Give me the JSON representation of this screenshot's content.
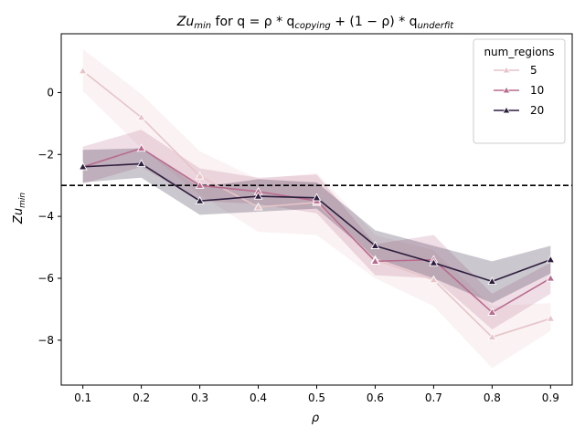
{
  "chart_data": {
    "type": "line",
    "title_prefix": "Zu",
    "title_prefix_sub": "min",
    "title_middle": " for q = ρ * q",
    "title_sub1": "copying",
    "title_middle2": " + (1 − ρ) * q",
    "title_sub2": "underfit",
    "xlabel": "ρ",
    "ylabel_main": "Zu",
    "ylabel_sub": "min",
    "x": [
      0.1,
      0.2,
      0.3,
      0.4,
      0.5,
      0.6,
      0.7,
      0.8,
      0.9
    ],
    "x_tick_labels": [
      "0.1",
      "0.2",
      "0.3",
      "0.4",
      "0.5",
      "0.6",
      "0.7",
      "0.8",
      "0.9"
    ],
    "y_ticks": [
      0,
      -2,
      -4,
      -6,
      -8
    ],
    "y_tick_labels": [
      "0",
      "−2",
      "−4",
      "−6",
      "−8"
    ],
    "xlim": [
      0.063,
      0.937
    ],
    "ylim": [
      -9.45,
      1.9
    ],
    "reference_line_y": -3,
    "legend_title": "num_regions",
    "legend_position": "upper right",
    "series": [
      {
        "name": "5",
        "color": "#e6c4c8",
        "values": [
          0.7,
          -0.8,
          -2.7,
          -3.7,
          -3.55,
          -5.4,
          -6.05,
          -7.9,
          -7.3
        ],
        "lower": [
          0.05,
          -1.8,
          -3.3,
          -4.5,
          -4.6,
          -6.0,
          -6.9,
          -8.9,
          -7.7
        ],
        "upper": [
          1.4,
          -0.05,
          -1.9,
          -2.8,
          -2.6,
          -4.6,
          -5.1,
          -6.9,
          -6.8
        ]
      },
      {
        "name": "10",
        "color": "#b96b8e",
        "values": [
          -2.4,
          -1.8,
          -3.0,
          -3.2,
          -3.5,
          -5.45,
          -5.4,
          -7.1,
          -6.0
        ],
        "lower": [
          -2.95,
          -2.4,
          -3.5,
          -3.6,
          -3.9,
          -5.9,
          -6.0,
          -7.65,
          -6.5
        ],
        "upper": [
          -1.75,
          -1.2,
          -2.45,
          -2.75,
          -2.65,
          -4.9,
          -4.6,
          -6.5,
          -5.5
        ]
      },
      {
        "name": "20",
        "color": "#2d1e3e",
        "values": [
          -2.4,
          -2.3,
          -3.5,
          -3.35,
          -3.4,
          -4.95,
          -5.5,
          -6.1,
          -5.4
        ],
        "lower": [
          -2.9,
          -2.75,
          -3.95,
          -3.85,
          -3.75,
          -5.35,
          -6.0,
          -6.8,
          -5.85
        ],
        "upper": [
          -1.85,
          -1.8,
          -3.05,
          -2.8,
          -2.9,
          -4.45,
          -4.95,
          -5.45,
          -4.95
        ]
      }
    ]
  }
}
